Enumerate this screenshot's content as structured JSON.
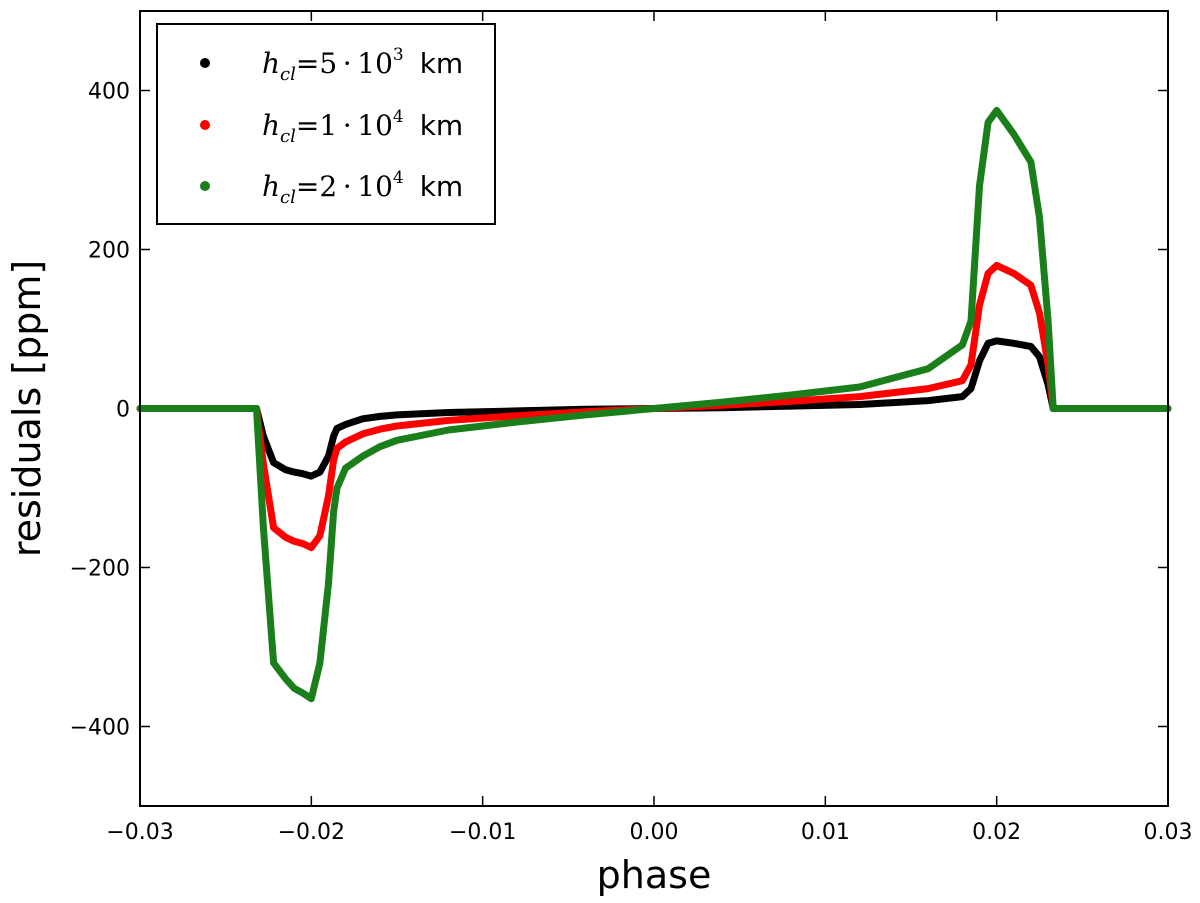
{
  "chart_data": {
    "type": "line",
    "xlabel": "phase",
    "ylabel": "residuals [ppm]",
    "xlim": [
      -0.03,
      0.03
    ],
    "ylim": [
      -500,
      500
    ],
    "xticks": [
      -0.03,
      -0.02,
      -0.01,
      0.0,
      0.01,
      0.02,
      0.03
    ],
    "xtick_labels": [
      "−0.03",
      "−0.02",
      "−0.01",
      "0.00",
      "0.01",
      "0.02",
      "0.03"
    ],
    "yticks": [
      -400,
      -200,
      0,
      200,
      400
    ],
    "ytick_labels": [
      "−400",
      "−200",
      "0",
      "200",
      "400"
    ],
    "legend_position": "top-left",
    "grid": false,
    "series": [
      {
        "name": "h_cl=5·10^3 km",
        "label_main": "h",
        "label_sub": "cl",
        "label_eq": "=5 · 10",
        "label_exp": "3",
        "label_unit": "km",
        "color": "#000000",
        "x": [
          -0.03,
          -0.0235,
          -0.0232,
          -0.0228,
          -0.0222,
          -0.0215,
          -0.021,
          -0.0205,
          -0.02,
          -0.0195,
          -0.019,
          -0.0187,
          -0.0185,
          -0.018,
          -0.017,
          -0.016,
          -0.015,
          -0.012,
          -0.008,
          -0.004,
          0.0,
          0.004,
          0.008,
          0.012,
          0.016,
          0.018,
          0.0185,
          0.019,
          0.0195,
          0.02,
          0.021,
          0.022,
          0.0225,
          0.023,
          0.0233,
          0.0235,
          0.03
        ],
        "y": [
          0,
          0,
          0,
          -35,
          -68,
          -77,
          -80,
          -82,
          -85,
          -80,
          -60,
          -35,
          -25,
          -20,
          -13,
          -10,
          -8,
          -5,
          -3,
          -1,
          0,
          1,
          3,
          5,
          10,
          15,
          25,
          60,
          82,
          85,
          82,
          78,
          65,
          30,
          0,
          0,
          0
        ]
      },
      {
        "name": "h_cl=1·10^4 km",
        "label_main": "h",
        "label_sub": "cl",
        "label_eq": "=1 · 10",
        "label_exp": "4",
        "label_unit": "km",
        "color": "#ff0000",
        "x": [
          -0.03,
          -0.0235,
          -0.0232,
          -0.0228,
          -0.0222,
          -0.0215,
          -0.021,
          -0.0205,
          -0.02,
          -0.0195,
          -0.019,
          -0.0187,
          -0.0185,
          -0.018,
          -0.017,
          -0.016,
          -0.015,
          -0.012,
          -0.008,
          -0.004,
          0.0,
          0.004,
          0.008,
          0.012,
          0.016,
          0.018,
          0.0185,
          0.019,
          0.0195,
          0.02,
          0.021,
          0.022,
          0.0225,
          0.023,
          0.0233,
          0.0235,
          0.03
        ],
        "y": [
          0,
          0,
          0,
          -70,
          -150,
          -162,
          -167,
          -170,
          -175,
          -160,
          -110,
          -65,
          -50,
          -42,
          -32,
          -26,
          -22,
          -15,
          -9,
          -4,
          0,
          4,
          9,
          15,
          25,
          35,
          55,
          130,
          170,
          180,
          170,
          155,
          120,
          55,
          0,
          0,
          0
        ]
      },
      {
        "name": "h_cl=2·10^4 km",
        "label_main": "h",
        "label_sub": "cl",
        "label_eq": "=2 · 10",
        "label_exp": "4",
        "label_unit": "km",
        "color": "#1a7f1a",
        "x": [
          -0.03,
          -0.0235,
          -0.0232,
          -0.0228,
          -0.0222,
          -0.0215,
          -0.021,
          -0.0205,
          -0.02,
          -0.0195,
          -0.019,
          -0.0187,
          -0.0185,
          -0.018,
          -0.017,
          -0.016,
          -0.015,
          -0.012,
          -0.008,
          -0.004,
          0.0,
          0.004,
          0.008,
          0.012,
          0.016,
          0.018,
          0.0185,
          0.019,
          0.0195,
          0.02,
          0.021,
          0.022,
          0.0225,
          0.023,
          0.0233,
          0.0235,
          0.03
        ],
        "y": [
          0,
          0,
          0,
          -150,
          -320,
          -340,
          -352,
          -358,
          -365,
          -320,
          -220,
          -130,
          -100,
          -75,
          -60,
          -48,
          -40,
          -27,
          -17,
          -8,
          0,
          8,
          17,
          27,
          50,
          80,
          110,
          280,
          360,
          375,
          345,
          310,
          240,
          110,
          0,
          0,
          0
        ]
      }
    ]
  }
}
